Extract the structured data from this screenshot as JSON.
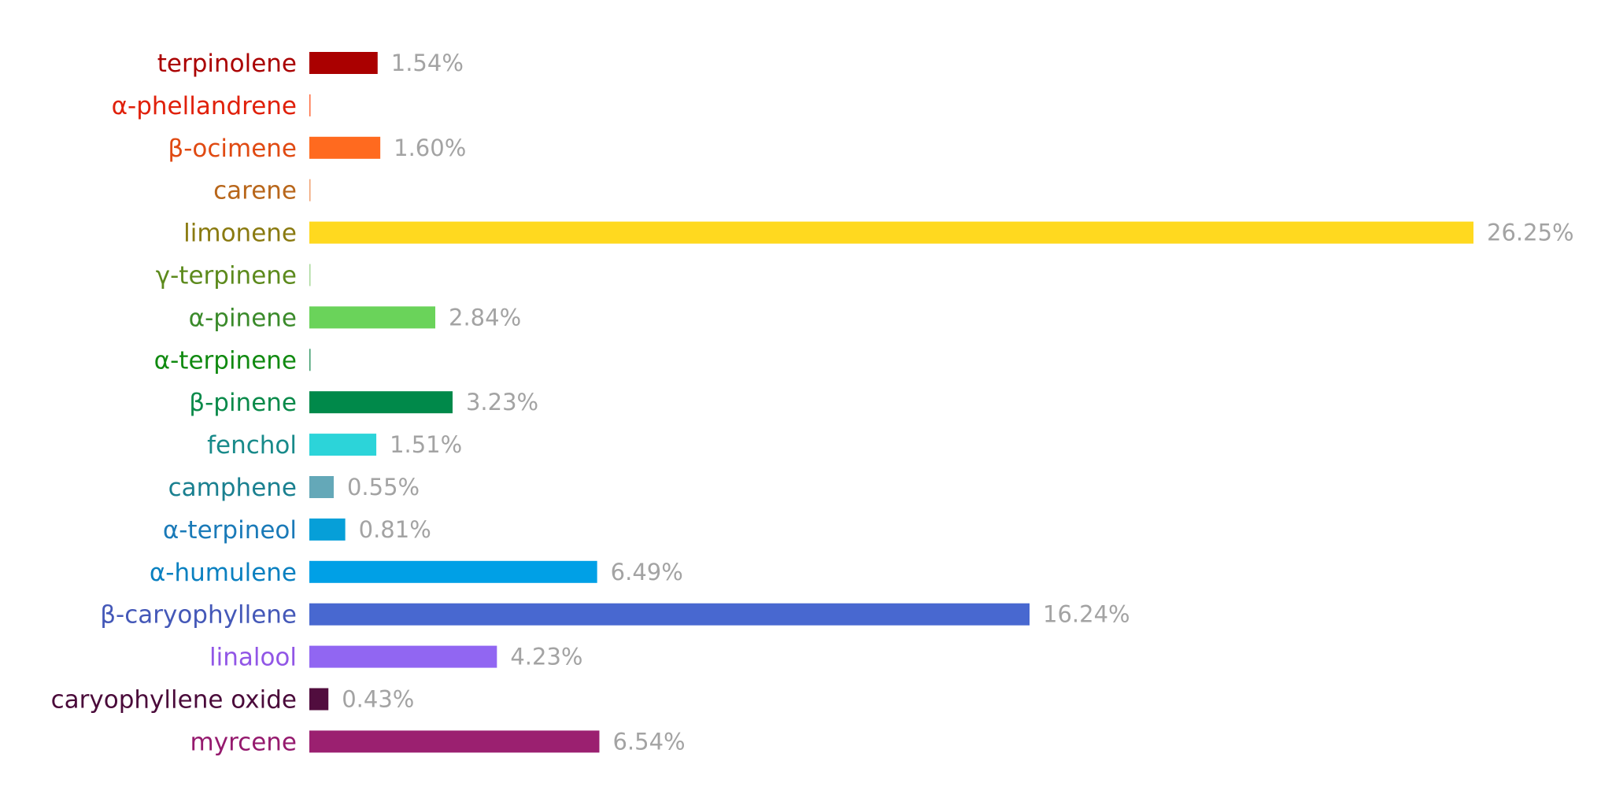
{
  "chart_data": {
    "type": "bar",
    "orientation": "horizontal",
    "title": "",
    "xlabel": "",
    "ylabel": "",
    "grid": false,
    "legend": "none",
    "xlim": [
      0,
      26.25
    ],
    "value_suffix": "%",
    "categories": [
      "terpinolene",
      "α-phellandrene",
      "β-ocimene",
      "carene",
      "limonene",
      "γ-terpinene",
      "α-pinene",
      "α-terpinene",
      "β-pinene",
      "fenchol",
      "camphene",
      "α-terpineol",
      "α-humulene",
      "β-caryophyllene",
      "linalool",
      "caryophyllene oxide",
      "myrcene"
    ],
    "values": [
      1.54,
      0,
      1.6,
      0,
      26.25,
      0,
      2.84,
      0,
      3.23,
      1.51,
      0.55,
      0.81,
      6.49,
      16.24,
      4.23,
      0.43,
      6.54
    ],
    "value_labels": [
      "1.54%",
      "",
      "1.60%",
      "",
      "26.25%",
      "",
      "2.84%",
      "",
      "3.23%",
      "1.51%",
      "0.55%",
      "0.81%",
      "6.49%",
      "16.24%",
      "4.23%",
      "0.43%",
      "6.54%"
    ],
    "bar_colors": [
      "#aa0000",
      "#ff6a3d",
      "#ff6a1f",
      "#f0a070",
      "#ffd91f",
      "#a8d89a",
      "#6ad35a",
      "#3a9a6a",
      "#00894a",
      "#2cd4d9",
      "#64a8b8",
      "#069fd8",
      "#00a0e6",
      "#4868d0",
      "#9166f2",
      "#510d3e",
      "#9b2070"
    ],
    "label_colors": [
      "#aa0000",
      "#e0200a",
      "#e04a12",
      "#b8661a",
      "#8a7a10",
      "#5c8a1c",
      "#3a8a2a",
      "#108a10",
      "#0a8a4a",
      "#188a8a",
      "#1a8090",
      "#1a7ab8",
      "#0a80c0",
      "#4458b8",
      "#9156e6",
      "#4a0a3a",
      "#951a6e"
    ]
  }
}
